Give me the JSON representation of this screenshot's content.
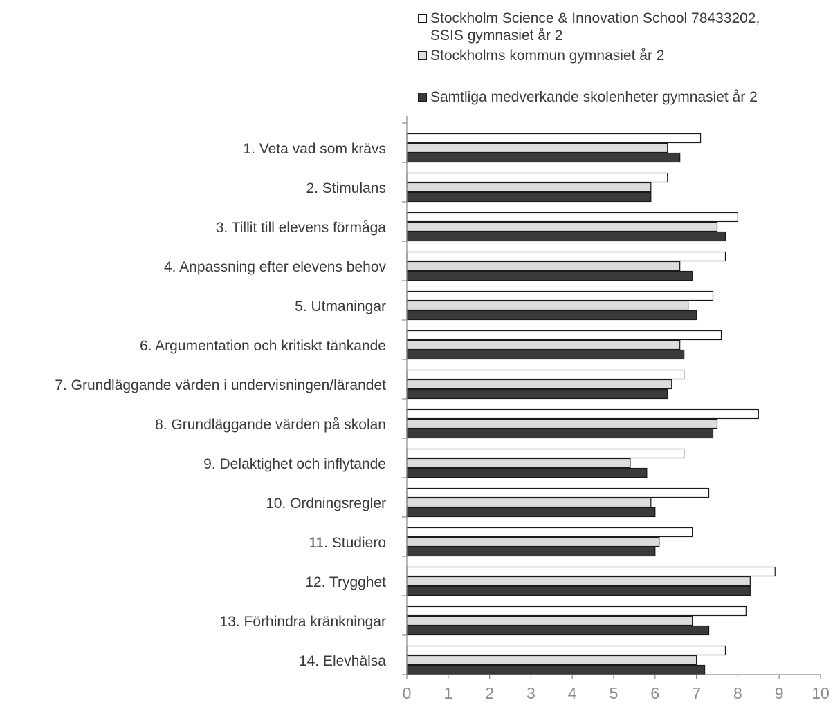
{
  "chart_data": {
    "type": "bar",
    "orientation": "horizontal",
    "title": "",
    "xlabel": "",
    "ylabel": "",
    "xlim": [
      0,
      10
    ],
    "x_ticks": [
      "0",
      "1",
      "2",
      "3",
      "4",
      "5",
      "6",
      "7",
      "8",
      "9",
      "10"
    ],
    "grid": false,
    "legend_position": "top-right",
    "categories": [
      "1. Veta vad som krävs",
      "2. Stimulans",
      "3. Tillit till elevens förmåga",
      "4. Anpassning efter elevens behov",
      "5. Utmaningar",
      "6. Argumentation och kritiskt tänkande",
      "7. Grundläggande värden i undervisningen/lärandet",
      "8. Grundläggande värden på skolan",
      "9. Delaktighet och inflytande",
      "10. Ordningsregler",
      "11. Studiero",
      "12. Trygghet",
      "13. Förhindra kränkningar",
      "14. Elevhälsa"
    ],
    "series": [
      {
        "name": "Stockholm Science & Innovation School 78433202,\nSSIS gymnasiet år 2",
        "color": "#ffffff",
        "values": [
          7.1,
          6.3,
          8.0,
          7.7,
          7.4,
          7.6,
          6.7,
          8.5,
          6.7,
          7.3,
          6.9,
          8.9,
          8.2,
          7.7
        ]
      },
      {
        "name": "Stockholms kommun gymnasiet år 2",
        "color": "#dcdcdc",
        "values": [
          6.3,
          5.9,
          7.5,
          6.6,
          6.8,
          6.6,
          6.4,
          7.5,
          5.4,
          5.9,
          6.1,
          8.3,
          6.9,
          7.0
        ]
      },
      {
        "name": "Samtliga medverkande skolenheter gymnasiet år 2",
        "color": "#3a3a3a",
        "values": [
          6.6,
          5.9,
          7.7,
          6.9,
          7.0,
          6.7,
          6.3,
          7.4,
          5.8,
          6.0,
          6.0,
          8.3,
          7.3,
          7.2
        ]
      }
    ]
  }
}
